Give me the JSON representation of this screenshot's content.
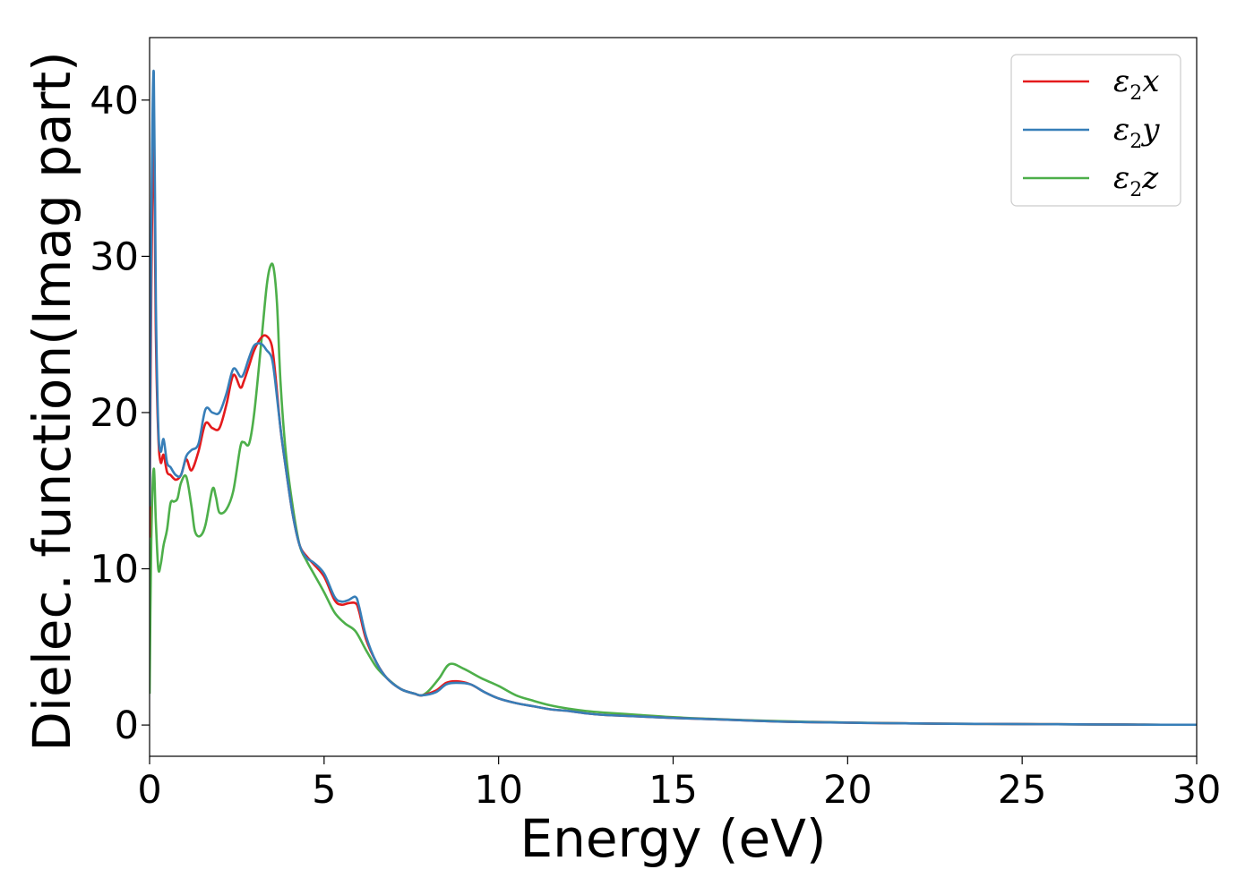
{
  "chart_data": {
    "type": "line",
    "xlabel": "Energy (eV)",
    "ylabel": "Dielec. function(Imag part)",
    "xlim": [
      0,
      30
    ],
    "ylim": [
      -2,
      44
    ],
    "xticks": [
      0,
      5,
      10,
      15,
      20,
      25,
      30
    ],
    "yticks": [
      0,
      10,
      20,
      30,
      40
    ],
    "grid": false,
    "legend_position": "top-right",
    "series": [
      {
        "name": "ε2x",
        "legend": {
          "symbol": "ε",
          "sub": "2",
          "var": "x"
        },
        "color": "#e41a1c",
        "x": [
          0,
          0.05,
          0.12,
          0.18,
          0.25,
          0.32,
          0.4,
          0.5,
          0.6,
          0.75,
          0.9,
          1.05,
          1.2,
          1.4,
          1.6,
          1.8,
          2.0,
          2.2,
          2.4,
          2.6,
          2.7,
          2.85,
          3.0,
          3.2,
          3.35,
          3.5,
          3.6,
          3.75,
          3.9,
          4.1,
          4.3,
          4.5,
          4.7,
          5.0,
          5.3,
          5.5,
          5.7,
          5.9,
          6.0,
          6.2,
          6.5,
          6.8,
          7.2,
          7.6,
          7.8,
          8.2,
          8.5,
          8.8,
          9.2,
          9.6,
          10.0,
          10.5,
          11.0,
          11.5,
          12.0,
          12.5,
          13.0,
          14.0,
          15.0,
          16.0,
          17.0,
          18.0,
          19.0,
          20.0,
          21.0,
          22.0,
          23.0,
          24.0,
          25.0,
          26.0,
          27.0,
          28.0,
          29.0,
          30.0
        ],
        "y": [
          12.0,
          28.0,
          38.0,
          25.0,
          18.5,
          16.8,
          17.3,
          16.2,
          16.0,
          15.7,
          16.0,
          17.0,
          16.3,
          17.5,
          19.3,
          19.0,
          19.0,
          20.5,
          22.4,
          21.6,
          22.0,
          23.0,
          24.0,
          24.8,
          24.9,
          24.3,
          22.5,
          19.0,
          16.5,
          13.5,
          11.5,
          10.8,
          10.3,
          9.5,
          8.0,
          7.7,
          7.8,
          7.8,
          7.3,
          5.5,
          4.0,
          3.0,
          2.3,
          2.0,
          1.9,
          2.2,
          2.7,
          2.8,
          2.6,
          2.1,
          1.7,
          1.4,
          1.2,
          1.0,
          0.9,
          0.75,
          0.65,
          0.55,
          0.45,
          0.38,
          0.3,
          0.22,
          0.18,
          0.15,
          0.12,
          0.1,
          0.08,
          0.07,
          0.06,
          0.05,
          0.04,
          0.03,
          0.02,
          0.02
        ]
      },
      {
        "name": "ε2y",
        "legend": {
          "symbol": "ε",
          "sub": "2",
          "var": "y"
        },
        "color": "#377eb8",
        "x": [
          0,
          0.05,
          0.12,
          0.18,
          0.25,
          0.32,
          0.4,
          0.5,
          0.6,
          0.75,
          0.9,
          1.05,
          1.2,
          1.4,
          1.6,
          1.8,
          2.0,
          2.2,
          2.4,
          2.6,
          2.7,
          2.85,
          3.0,
          3.2,
          3.35,
          3.5,
          3.6,
          3.75,
          3.9,
          4.1,
          4.3,
          4.5,
          4.7,
          5.0,
          5.3,
          5.5,
          5.7,
          5.9,
          6.0,
          6.2,
          6.5,
          6.8,
          7.2,
          7.6,
          7.8,
          8.2,
          8.5,
          8.8,
          9.2,
          9.6,
          10.0,
          10.5,
          11.0,
          11.5,
          12.0,
          12.5,
          13.0,
          14.0,
          15.0,
          16.0,
          17.0,
          18.0,
          19.0,
          20.0,
          21.0,
          22.0,
          23.0,
          24.0,
          25.0,
          26.0,
          27.0,
          28.0,
          29.0,
          30.0
        ],
        "y": [
          14.0,
          32.0,
          41.8,
          27.0,
          19.0,
          17.5,
          18.3,
          16.8,
          16.5,
          16.0,
          16.0,
          17.2,
          17.6,
          18.0,
          20.2,
          20.0,
          20.0,
          21.2,
          22.8,
          22.3,
          22.5,
          23.5,
          24.3,
          24.4,
          24.0,
          23.5,
          22.0,
          19.0,
          16.5,
          13.5,
          11.5,
          10.7,
          10.4,
          9.7,
          8.2,
          7.9,
          8.0,
          8.2,
          7.6,
          5.7,
          4.0,
          3.0,
          2.3,
          2.0,
          1.9,
          2.1,
          2.6,
          2.7,
          2.6,
          2.1,
          1.7,
          1.4,
          1.2,
          1.0,
          0.9,
          0.75,
          0.65,
          0.55,
          0.45,
          0.38,
          0.3,
          0.22,
          0.18,
          0.15,
          0.12,
          0.1,
          0.08,
          0.07,
          0.06,
          0.05,
          0.04,
          0.03,
          0.02,
          0.02
        ]
      },
      {
        "name": "ε2z",
        "legend": {
          "symbol": "ε",
          "sub": "2",
          "var": "z"
        },
        "color": "#4daf4a",
        "x": [
          0,
          0.05,
          0.12,
          0.18,
          0.25,
          0.32,
          0.4,
          0.5,
          0.6,
          0.7,
          0.8,
          0.9,
          1.05,
          1.2,
          1.3,
          1.45,
          1.6,
          1.8,
          1.9,
          2.0,
          2.2,
          2.4,
          2.6,
          2.7,
          2.85,
          3.0,
          3.2,
          3.35,
          3.45,
          3.55,
          3.65,
          3.75,
          3.9,
          4.1,
          4.3,
          4.5,
          4.7,
          5.0,
          5.3,
          5.6,
          5.9,
          6.2,
          6.5,
          6.8,
          7.2,
          7.6,
          7.8,
          8.0,
          8.3,
          8.6,
          9.0,
          9.5,
          10.0,
          10.5,
          11.0,
          11.5,
          12.0,
          12.5,
          13.0,
          14.0,
          15.0,
          16.0,
          17.0,
          18.0,
          19.0,
          20.0,
          21.0,
          22.0,
          23.0,
          24.0,
          25.0,
          26.0,
          27.0,
          28.0,
          29.0,
          30.0
        ],
        "y": [
          2.0,
          12.0,
          16.4,
          13.0,
          10.0,
          10.3,
          11.5,
          12.5,
          14.2,
          14.3,
          14.5,
          15.5,
          15.9,
          14.0,
          12.4,
          12.1,
          12.8,
          15.1,
          14.6,
          13.6,
          13.8,
          15.0,
          17.8,
          18.1,
          18.0,
          20.0,
          24.5,
          28.0,
          29.3,
          29.3,
          27.0,
          22.0,
          17.5,
          14.0,
          11.5,
          10.5,
          9.7,
          8.5,
          7.2,
          6.5,
          6.0,
          4.8,
          3.7,
          3.0,
          2.3,
          2.0,
          1.9,
          2.2,
          3.0,
          3.9,
          3.6,
          3.0,
          2.5,
          1.9,
          1.55,
          1.25,
          1.05,
          0.9,
          0.8,
          0.65,
          0.5,
          0.4,
          0.32,
          0.25,
          0.2,
          0.16,
          0.13,
          0.1,
          0.08,
          0.07,
          0.06,
          0.05,
          0.04,
          0.03,
          0.02,
          0.02
        ]
      }
    ]
  }
}
